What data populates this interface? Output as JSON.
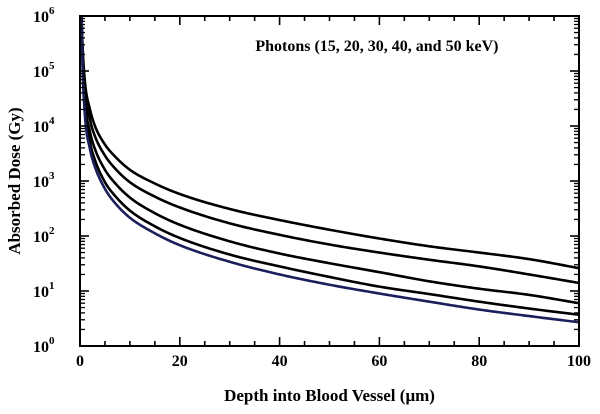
{
  "chart_data": {
    "type": "line",
    "annotation": "Photons (15, 20, 30, 40, and 50 keV)",
    "xlabel": "Depth into Blood Vessel (μm)",
    "ylabel": "Absorbed Dose (Gy)",
    "xlim": [
      0,
      100
    ],
    "ylim": [
      1,
      1000000
    ],
    "yscale": "log",
    "grid": false,
    "legend": "none",
    "x_ticks": [
      0,
      20,
      40,
      60,
      80,
      100
    ],
    "x_tick_labels": [
      "0",
      "20",
      "40",
      "60",
      "80",
      "100"
    ],
    "y_ticks": [
      1,
      10,
      100,
      1000,
      10000,
      100000,
      1000000
    ],
    "y_tick_labels": [
      {
        "base": "10",
        "exp": "0"
      },
      {
        "base": "10",
        "exp": "1"
      },
      {
        "base": "10",
        "exp": "2"
      },
      {
        "base": "10",
        "exp": "3"
      },
      {
        "base": "10",
        "exp": "4"
      },
      {
        "base": "10",
        "exp": "5"
      },
      {
        "base": "10",
        "exp": "6"
      }
    ],
    "x": [
      0.3,
      0.5,
      1,
      2,
      3,
      5,
      7,
      10,
      15,
      20,
      30,
      40,
      50,
      60,
      70,
      80,
      90,
      100
    ],
    "series": [
      {
        "color": "#000000",
        "values": [
          1000000,
          300000,
          62000,
          20000,
          10000,
          4600,
          2800,
          1600,
          900,
          580,
          310,
          195,
          130,
          90,
          65,
          50,
          38,
          26
        ]
      },
      {
        "color": "#000000",
        "values": [
          1000000,
          250000,
          45000,
          13000,
          6500,
          2900,
          1700,
          950,
          520,
          330,
          170,
          105,
          70,
          50,
          37,
          28,
          20,
          14
        ]
      },
      {
        "color": "#000000",
        "values": [
          1000000,
          200000,
          28000,
          7800,
          3800,
          1600,
          920,
          500,
          260,
          160,
          80,
          48,
          32,
          22,
          15,
          11,
          8.5,
          6
        ]
      },
      {
        "color": "#000000",
        "values": [
          1000000,
          160000,
          19000,
          5000,
          2400,
          950,
          540,
          290,
          150,
          92,
          46,
          28,
          18,
          12,
          8.8,
          6.4,
          4.8,
          3.7
        ]
      },
      {
        "color": "#1b1f5c",
        "values": [
          1000000,
          130000,
          15000,
          3800,
          1800,
          720,
          400,
          215,
          112,
          68,
          34,
          20,
          13,
          9,
          6.4,
          4.6,
          3.5,
          2.7
        ]
      }
    ]
  }
}
